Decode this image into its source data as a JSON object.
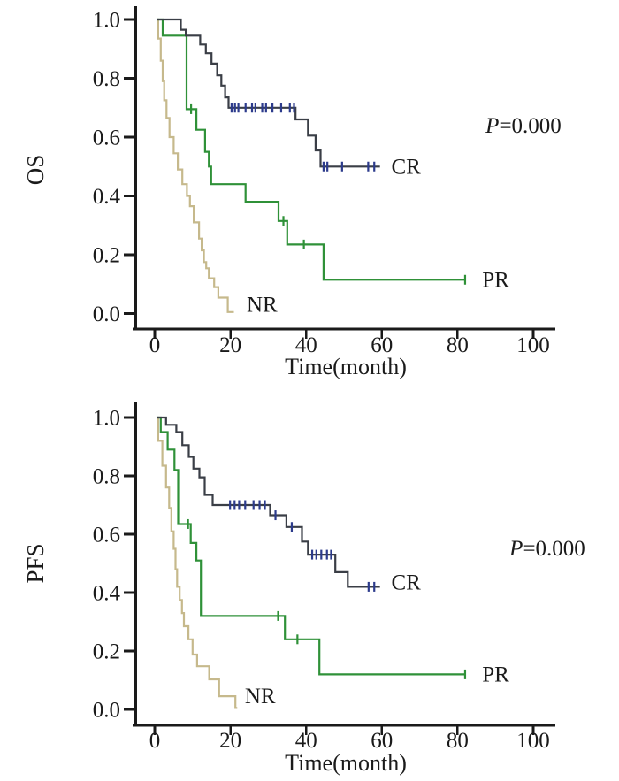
{
  "figure": {
    "background": "#ffffff",
    "ink_color": "#1a1a1a"
  },
  "chart_data": [
    {
      "id": "os",
      "type": "line",
      "subtype": "kaplan_meier_step",
      "title": "",
      "ylabel": "OS",
      "xlabel": "Time(month)",
      "pvalue_label": "P=0.000",
      "grid": false,
      "legend_position": "labels-at-curve-ends",
      "xlim": [
        0,
        105
      ],
      "ylim": [
        0,
        1.0
      ],
      "xticks": [
        0,
        20,
        40,
        60,
        80,
        100
      ],
      "xtick_labels": [
        "0",
        "20",
        "40",
        "60",
        "80",
        "100"
      ],
      "yticks": [
        1.0,
        0.8,
        0.6,
        0.4,
        0.2,
        0.0
      ],
      "ytick_labels": [
        "1.0",
        "0.8",
        "0.6",
        "0.4",
        "0.2",
        "0.0"
      ],
      "series": [
        {
          "name": "NR",
          "color": "#c6b98c",
          "censor_color": "#c6b98c",
          "label_at": [
            24.3,
            0.03
          ],
          "points": [
            [
              0.5,
              1.0
            ],
            [
              0.9,
              0.935
            ],
            [
              1.6,
              0.86
            ],
            [
              2.1,
              0.79
            ],
            [
              2.5,
              0.725
            ],
            [
              3.1,
              0.665
            ],
            [
              3.9,
              0.6
            ],
            [
              5.0,
              0.545
            ],
            [
              6.1,
              0.49
            ],
            [
              7.3,
              0.44
            ],
            [
              8.5,
              0.4
            ],
            [
              9.3,
              0.365
            ],
            [
              10.3,
              0.31
            ],
            [
              11.7,
              0.255
            ],
            [
              12.4,
              0.215
            ],
            [
              13.0,
              0.175
            ],
            [
              13.6,
              0.154
            ],
            [
              14.3,
              0.12
            ],
            [
              15.7,
              0.09
            ],
            [
              16.8,
              0.054
            ],
            [
              19.3,
              0.005
            ],
            [
              20.9,
              0.005
            ]
          ],
          "censors": []
        },
        {
          "name": "PR",
          "color": "#2f9138",
          "censor_color": "#2f9138",
          "label_at": [
            86.5,
            0.115
          ],
          "points": [
            [
              0.5,
              1.0
            ],
            [
              2.1,
              0.945
            ],
            [
              8.4,
              0.695
            ],
            [
              11.0,
              0.625
            ],
            [
              13.3,
              0.55
            ],
            [
              14.3,
              0.5
            ],
            [
              14.9,
              0.44
            ],
            [
              24.0,
              0.38
            ],
            [
              32.7,
              0.315
            ],
            [
              35.0,
              0.235
            ],
            [
              44.6,
              0.115
            ],
            [
              82.0,
              0.115
            ]
          ],
          "censors": [
            [
              9.6,
              0.695
            ],
            [
              34.0,
              0.315
            ],
            [
              39.4,
              0.235
            ],
            [
              82.0,
              0.115
            ]
          ]
        },
        {
          "name": "CR",
          "color": "#3a3e46",
          "censor_color": "#2c3b8c",
          "label_at": [
            62.5,
            0.5
          ],
          "points": [
            [
              0.5,
              1.0
            ],
            [
              6.9,
              0.965
            ],
            [
              8.2,
              0.945
            ],
            [
              12.0,
              0.915
            ],
            [
              13.5,
              0.885
            ],
            [
              15.0,
              0.85
            ],
            [
              16.5,
              0.81
            ],
            [
              17.6,
              0.775
            ],
            [
              18.6,
              0.735
            ],
            [
              19.5,
              0.7
            ],
            [
              37.2,
              0.66
            ],
            [
              40.5,
              0.605
            ],
            [
              42.5,
              0.555
            ],
            [
              43.8,
              0.5
            ],
            [
              59.5,
              0.5
            ]
          ],
          "censors": [
            [
              20.3,
              0.7
            ],
            [
              21.2,
              0.7
            ],
            [
              22.1,
              0.7
            ],
            [
              24.0,
              0.7
            ],
            [
              25.7,
              0.7
            ],
            [
              26.6,
              0.7
            ],
            [
              28.4,
              0.7
            ],
            [
              29.4,
              0.7
            ],
            [
              31.1,
              0.7
            ],
            [
              33.4,
              0.7
            ],
            [
              35.7,
              0.7
            ],
            [
              36.8,
              0.7
            ],
            [
              44.6,
              0.5
            ],
            [
              45.6,
              0.5
            ],
            [
              49.5,
              0.5
            ],
            [
              56.4,
              0.5
            ],
            [
              58.0,
              0.5
            ]
          ]
        }
      ]
    },
    {
      "id": "pfs",
      "type": "line",
      "subtype": "kaplan_meier_step",
      "title": "",
      "ylabel": "PFS",
      "xlabel": "Time(month)",
      "pvalue_label": "P=0.000",
      "grid": false,
      "legend_position": "labels-at-curve-ends",
      "xlim": [
        0,
        105
      ],
      "ylim": [
        0,
        1.0
      ],
      "xticks": [
        0,
        20,
        40,
        60,
        80,
        100
      ],
      "xtick_labels": [
        "0",
        "20",
        "40",
        "60",
        "80",
        "100"
      ],
      "yticks": [
        1.0,
        0.8,
        0.6,
        0.4,
        0.2,
        0.0
      ],
      "ytick_labels": [
        "1.0",
        "0.8",
        "0.6",
        "0.4",
        "0.2",
        "0.0"
      ],
      "series": [
        {
          "name": "NR",
          "color": "#c6b98c",
          "censor_color": "#c6b98c",
          "label_at": [
            23.8,
            0.045
          ],
          "points": [
            [
              0.5,
              1.0
            ],
            [
              0.9,
              0.92
            ],
            [
              2.0,
              0.835
            ],
            [
              3.0,
              0.76
            ],
            [
              3.8,
              0.69
            ],
            [
              4.4,
              0.61
            ],
            [
              5.0,
              0.55
            ],
            [
              5.5,
              0.48
            ],
            [
              5.9,
              0.42
            ],
            [
              6.6,
              0.375
            ],
            [
              7.2,
              0.33
            ],
            [
              7.7,
              0.285
            ],
            [
              8.9,
              0.24
            ],
            [
              10.0,
              0.188
            ],
            [
              11.2,
              0.148
            ],
            [
              14.4,
              0.103
            ],
            [
              17.0,
              0.045
            ],
            [
              21.3,
              0.005
            ],
            [
              21.8,
              0.005
            ]
          ],
          "censors": []
        },
        {
          "name": "PR",
          "color": "#2f9138",
          "censor_color": "#2f9138",
          "label_at": [
            86.5,
            0.12
          ],
          "points": [
            [
              0.5,
              1.0
            ],
            [
              1.6,
              0.95
            ],
            [
              3.4,
              0.89
            ],
            [
              5.2,
              0.82
            ],
            [
              6.2,
              0.635
            ],
            [
              9.5,
              0.57
            ],
            [
              11.0,
              0.51
            ],
            [
              12.2,
              0.32
            ],
            [
              34.4,
              0.24
            ],
            [
              43.5,
              0.12
            ],
            [
              82.0,
              0.12
            ]
          ],
          "censors": [
            [
              8.8,
              0.635
            ],
            [
              32.6,
              0.32
            ],
            [
              37.7,
              0.24
            ],
            [
              82.0,
              0.12
            ]
          ]
        },
        {
          "name": "CR",
          "color": "#3a3e46",
          "censor_color": "#2c3b8c",
          "label_at": [
            62.5,
            0.435
          ],
          "points": [
            [
              0.5,
              1.0
            ],
            [
              3.0,
              0.975
            ],
            [
              5.7,
              0.95
            ],
            [
              7.3,
              0.905
            ],
            [
              9.0,
              0.865
            ],
            [
              10.2,
              0.825
            ],
            [
              11.8,
              0.795
            ],
            [
              13.2,
              0.735
            ],
            [
              15.3,
              0.7
            ],
            [
              30.5,
              0.665
            ],
            [
              34.8,
              0.625
            ],
            [
              38.9,
              0.575
            ],
            [
              40.5,
              0.53
            ],
            [
              47.7,
              0.47
            ],
            [
              51.0,
              0.42
            ],
            [
              59.5,
              0.42
            ]
          ],
          "censors": [
            [
              19.9,
              0.7
            ],
            [
              21.1,
              0.7
            ],
            [
              22.3,
              0.7
            ],
            [
              23.9,
              0.7
            ],
            [
              26.1,
              0.7
            ],
            [
              27.7,
              0.7
            ],
            [
              29.1,
              0.7
            ],
            [
              31.9,
              0.665
            ],
            [
              36.2,
              0.625
            ],
            [
              41.6,
              0.53
            ],
            [
              42.7,
              0.53
            ],
            [
              44.0,
              0.53
            ],
            [
              45.5,
              0.53
            ],
            [
              46.6,
              0.53
            ],
            [
              56.5,
              0.42
            ],
            [
              58.0,
              0.42
            ]
          ]
        }
      ]
    }
  ]
}
